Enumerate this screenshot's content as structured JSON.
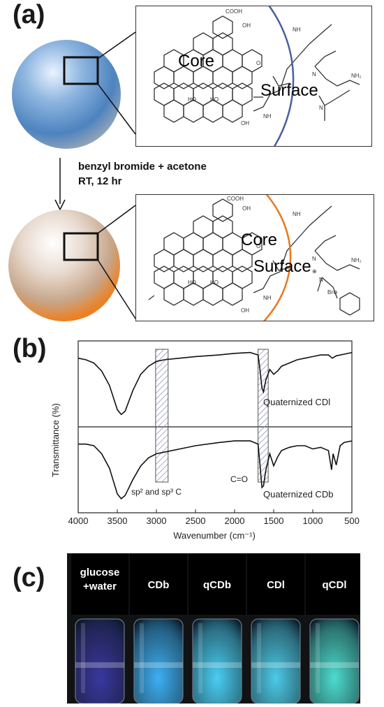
{
  "panel_a": {
    "label": "(a)",
    "reaction_line1": "benzyl bromide + acetone",
    "reaction_line2": "RT, 12 hr",
    "top_structure": {
      "core": "Core",
      "surface": "Surface",
      "groups": [
        "COOH",
        "OH",
        "HO",
        "HO",
        "O",
        "NH",
        "NH",
        "N",
        "N",
        "NH₂",
        "OH"
      ]
    },
    "bottom_structure": {
      "core": "Core",
      "surface": "Surface",
      "groups": [
        "COOH",
        "OH",
        "HO",
        "HO",
        "O",
        "NH",
        "NH",
        "N",
        "N",
        "NH₂",
        "OH",
        "⊕",
        "Br⊖"
      ]
    }
  },
  "panel_b": {
    "label": "(b)",
    "chart_data": {
      "type": "line",
      "xlabel": "Wavenumber (cm⁻¹)",
      "ylabel": "Transmittance (%)",
      "xlim": [
        4000,
        500
      ],
      "x_ticks": [
        4000,
        3500,
        3000,
        2500,
        2000,
        1500,
        1000,
        500
      ],
      "series": [
        {
          "name": "Quaternized CDl",
          "points": [
            [
              4000,
              0.82
            ],
            [
              3900,
              0.8
            ],
            [
              3800,
              0.76
            ],
            [
              3700,
              0.66
            ],
            [
              3600,
              0.48
            ],
            [
              3500,
              0.18
            ],
            [
              3450,
              0.12
            ],
            [
              3400,
              0.16
            ],
            [
              3300,
              0.42
            ],
            [
              3200,
              0.62
            ],
            [
              3100,
              0.72
            ],
            [
              3000,
              0.78
            ],
            [
              2900,
              0.8
            ],
            [
              2700,
              0.82
            ],
            [
              2500,
              0.84
            ],
            [
              2200,
              0.86
            ],
            [
              2000,
              0.88
            ],
            [
              1800,
              0.89
            ],
            [
              1700,
              0.86
            ],
            [
              1680,
              0.72
            ],
            [
              1650,
              0.45
            ],
            [
              1630,
              0.4
            ],
            [
              1600,
              0.55
            ],
            [
              1550,
              0.68
            ],
            [
              1500,
              0.62
            ],
            [
              1450,
              0.66
            ],
            [
              1400,
              0.72
            ],
            [
              1300,
              0.76
            ],
            [
              1200,
              0.8
            ],
            [
              1100,
              0.82
            ],
            [
              1000,
              0.84
            ],
            [
              900,
              0.86
            ],
            [
              800,
              0.86
            ],
            [
              750,
              0.82
            ],
            [
              700,
              0.85
            ],
            [
              600,
              0.87
            ],
            [
              500,
              0.89
            ]
          ]
        },
        {
          "name": "Quaternized CDb",
          "points": [
            [
              4000,
              0.82
            ],
            [
              3900,
              0.82
            ],
            [
              3800,
              0.8
            ],
            [
              3700,
              0.7
            ],
            [
              3600,
              0.52
            ],
            [
              3500,
              0.2
            ],
            [
              3450,
              0.14
            ],
            [
              3400,
              0.18
            ],
            [
              3300,
              0.38
            ],
            [
              3200,
              0.55
            ],
            [
              3100,
              0.65
            ],
            [
              3000,
              0.7
            ],
            [
              2900,
              0.72
            ],
            [
              2700,
              0.76
            ],
            [
              2500,
              0.8
            ],
            [
              2200,
              0.84
            ],
            [
              2000,
              0.86
            ],
            [
              1800,
              0.86
            ],
            [
              1700,
              0.82
            ],
            [
              1680,
              0.62
            ],
            [
              1650,
              0.28
            ],
            [
              1630,
              0.3
            ],
            [
              1600,
              0.5
            ],
            [
              1550,
              0.7
            ],
            [
              1500,
              0.55
            ],
            [
              1450,
              0.66
            ],
            [
              1400,
              0.74
            ],
            [
              1300,
              0.78
            ],
            [
              1200,
              0.8
            ],
            [
              1100,
              0.8
            ],
            [
              1000,
              0.76
            ],
            [
              900,
              0.78
            ],
            [
              800,
              0.74
            ],
            [
              760,
              0.5
            ],
            [
              740,
              0.7
            ],
            [
              700,
              0.56
            ],
            [
              650,
              0.8
            ],
            [
              600,
              0.84
            ],
            [
              500,
              0.86
            ]
          ]
        }
      ],
      "highlight_bands": [
        [
          3010,
          2850
        ],
        [
          1700,
          1570
        ]
      ],
      "annotations": [
        "sp² and sp³ C",
        "C=O"
      ]
    }
  },
  "panel_c": {
    "label": "(c)",
    "vials": [
      {
        "line1": "glucose",
        "line2": "+water",
        "glow": "#3a3aa6"
      },
      {
        "line1": "CDb",
        "glow": "#3fb8ff"
      },
      {
        "line1": "qCDb",
        "glow": "#4cd8ff"
      },
      {
        "line1": "CDl",
        "glow": "#4fd4f2"
      },
      {
        "line1": "qCDl",
        "glow": "#4fe6d8"
      }
    ]
  }
}
